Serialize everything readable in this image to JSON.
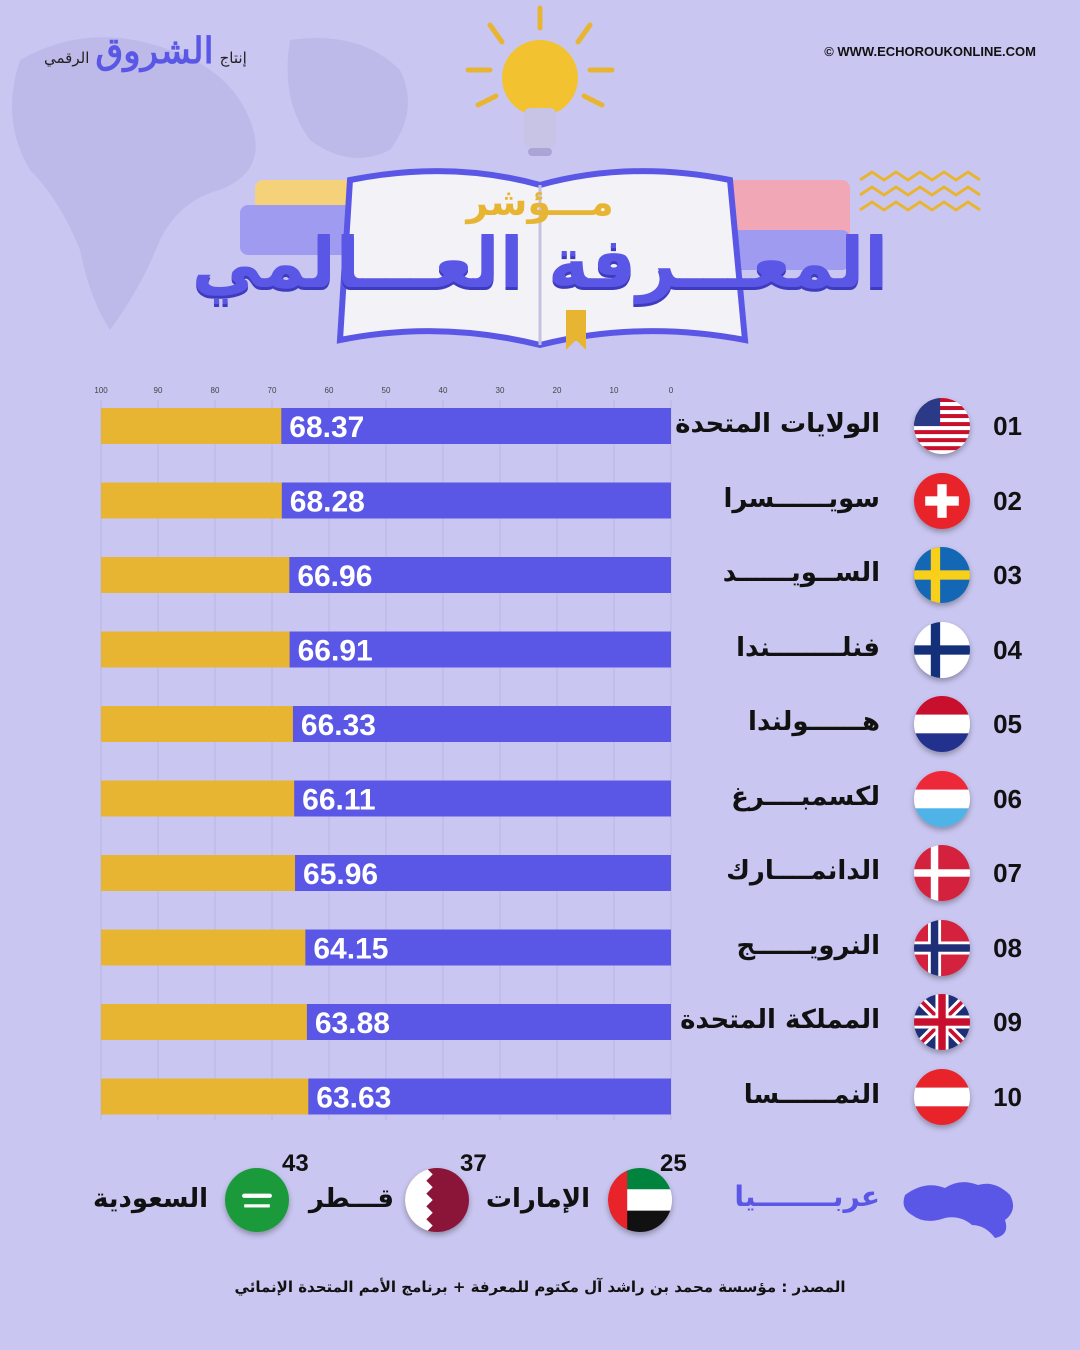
{
  "brand": {
    "name": "الشروق",
    "produced_by": "إنتاج",
    "digital": "الرقمي"
  },
  "website": "© WWW.ECHOROUKONLINE.COM",
  "title": {
    "line1": "مـــؤشر",
    "line2": "المعـــرفة العـــالمي"
  },
  "chart_data": {
    "type": "bar",
    "orientation": "horizontal",
    "x_axis": {
      "ticks": [
        100,
        90,
        80,
        70,
        60,
        50,
        40,
        30,
        20,
        10,
        0
      ],
      "reversed": true,
      "xlim": [
        0,
        100
      ]
    },
    "rows": [
      {
        "rank": "01",
        "country": "الولايات المتحدة",
        "value": 68.37,
        "value_label": "68.37",
        "flag": "usa-flag-icon"
      },
      {
        "rank": "02",
        "country": "سويــــــسرا",
        "value": 68.28,
        "value_label": "68.28",
        "flag": "switzerland-flag-icon"
      },
      {
        "rank": "03",
        "country": "الســويــــــد",
        "value": 66.96,
        "value_label": "66.96",
        "flag": "sweden-flag-icon"
      },
      {
        "rank": "04",
        "country": "فنلــــــــندا",
        "value": 66.91,
        "value_label": "66.91",
        "flag": "finland-flag-icon"
      },
      {
        "rank": "05",
        "country": "هــــــولندا",
        "value": 66.33,
        "value_label": "66.33",
        "flag": "netherlands-flag-icon"
      },
      {
        "rank": "06",
        "country": "لكسمبــــرغ",
        "value": 66.11,
        "value_label": "66.11",
        "flag": "luxembourg-flag-icon"
      },
      {
        "rank": "07",
        "country": "الدانمــــارك",
        "value": 65.96,
        "value_label": "65.96",
        "flag": "denmark-flag-icon"
      },
      {
        "rank": "08",
        "country": "النرويــــــج",
        "value": 64.15,
        "value_label": "64.15",
        "flag": "norway-flag-icon"
      },
      {
        "rank": "09",
        "country": "المملكة المتحدة",
        "value": 63.88,
        "value_label": "63.88",
        "flag": "uk-flag-icon"
      },
      {
        "rank": "10",
        "country": "النمــــــسا",
        "value": 63.63,
        "value_label": "63.63",
        "flag": "austria-flag-icon"
      }
    ],
    "colors": {
      "value_bar": "#5b57e6",
      "remainder_bar": "#e8b533"
    }
  },
  "arab": {
    "title": "عربــــــــيا",
    "items": [
      {
        "name": "الإمارات",
        "rank": "25",
        "flag": "uae-flag-icon"
      },
      {
        "name": "قـــطر",
        "rank": "37",
        "flag": "qatar-flag-icon"
      },
      {
        "name": "السعودية",
        "rank": "43",
        "flag": "saudi-flag-icon"
      }
    ]
  },
  "source": "المصدر : مؤسسة محمد بن راشد آل مكتوم للمعرفة + برنامج الأمم المتحدة الإنمائي",
  "colors": {
    "background": "#c9c7f1",
    "accent": "#5b57e6",
    "gold": "#e8b533"
  }
}
